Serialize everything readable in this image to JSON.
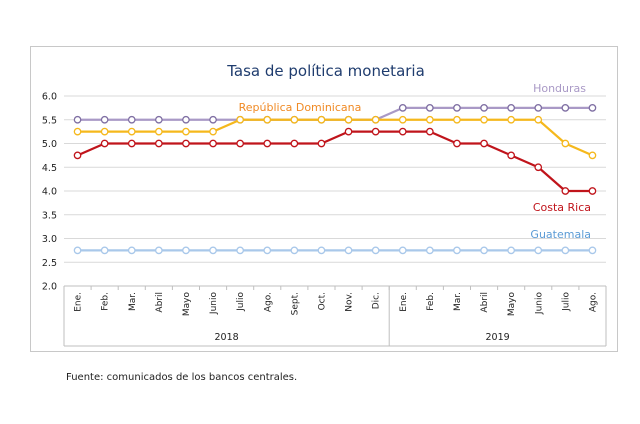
{
  "chart_data": {
    "type": "line",
    "title": "Tasa de política monetaria",
    "xlabel": "",
    "ylabel": "",
    "ylim": [
      2.0,
      6.0
    ],
    "yticks": [
      "2.0",
      "2.5",
      "3.0",
      "3.5",
      "4.0",
      "4.5",
      "5.0",
      "5.5",
      "6.0"
    ],
    "categories": [
      "Ene.",
      "Feb.",
      "Mar.",
      "Abril",
      "Mayo",
      "Junio",
      "Julio",
      "Ago.",
      "Sept.",
      "Oct.",
      "Nov.",
      "Dic.",
      "Ene.",
      "Feb.",
      "Mar.",
      "Abril",
      "Mayo",
      "Junio",
      "Julio",
      "Ago."
    ],
    "year_groups": [
      {
        "label": "2018",
        "count": 12
      },
      {
        "label": "2019",
        "count": 8
      }
    ],
    "grid": true,
    "legend": "inline labels",
    "series": [
      {
        "name": "Honduras",
        "color": "#a999c6",
        "values": [
          5.5,
          5.5,
          5.5,
          5.5,
          5.5,
          5.5,
          5.5,
          5.5,
          5.5,
          5.5,
          5.5,
          5.5,
          5.75,
          5.75,
          5.75,
          5.75,
          5.75,
          5.75,
          5.75,
          5.75
        ]
      },
      {
        "name": "República Dominicana",
        "color": "#f5b81c",
        "values": [
          5.25,
          5.25,
          5.25,
          5.25,
          5.25,
          5.25,
          5.5,
          5.5,
          5.5,
          5.5,
          5.5,
          5.5,
          5.5,
          5.5,
          5.5,
          5.5,
          5.5,
          5.5,
          5.0,
          4.75
        ]
      },
      {
        "name": "Costa Rica",
        "color": "#c0141b",
        "values": [
          4.75,
          5.0,
          5.0,
          5.0,
          5.0,
          5.0,
          5.0,
          5.0,
          5.0,
          5.0,
          5.25,
          5.25,
          5.25,
          5.25,
          5.0,
          5.0,
          4.75,
          4.5,
          4.0,
          4.0
        ]
      },
      {
        "name": "Guatemala",
        "color": "#a9c8ea",
        "values": [
          2.75,
          2.75,
          2.75,
          2.75,
          2.75,
          2.75,
          2.75,
          2.75,
          2.75,
          2.75,
          2.75,
          2.75,
          2.75,
          2.75,
          2.75,
          2.75,
          2.75,
          2.75,
          2.75,
          2.75
        ]
      }
    ],
    "label_colors": {
      "title": "#1f3c6e",
      "Honduras": "#a999c6",
      "República Dominicana": "#f08a24",
      "Costa Rica": "#c0141b",
      "Guatemala": "#5b9bd5"
    }
  },
  "source": "Fuente: comunicados de los bancos centrales."
}
